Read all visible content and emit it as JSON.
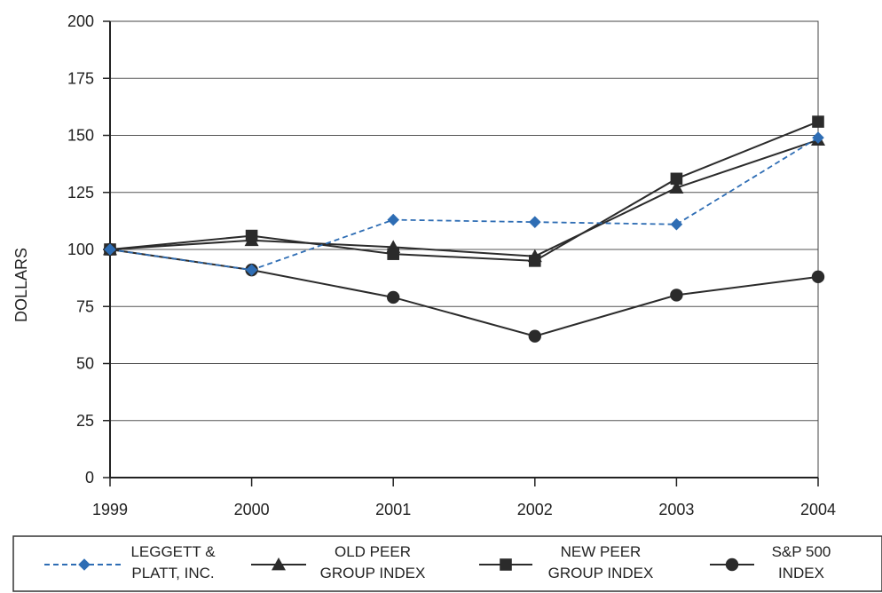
{
  "chart_data": {
    "type": "line",
    "title": "",
    "xlabel": "",
    "ylabel": "DOLLARS",
    "x": [
      "1999",
      "2000",
      "2001",
      "2002",
      "2003",
      "2004"
    ],
    "ylim": [
      0,
      200
    ],
    "yticks": [
      0,
      25,
      50,
      75,
      100,
      125,
      150,
      175,
      200
    ],
    "grid": true,
    "legend_position": "bottom",
    "series": [
      {
        "name": "LEGGETT & PLATT, INC.",
        "legend_lines": [
          "LEGGETT &",
          "PLATT, INC."
        ],
        "values": [
          100,
          91,
          113,
          112,
          111,
          149
        ],
        "marker": "diamond",
        "line_style": "dashed",
        "color": "#2e6db4"
      },
      {
        "name": "OLD PEER GROUP INDEX",
        "legend_lines": [
          "OLD PEER",
          "GROUP INDEX"
        ],
        "values": [
          100,
          104,
          101,
          97,
          127,
          148
        ],
        "marker": "triangle",
        "line_style": "solid",
        "color": "#2b2b2b"
      },
      {
        "name": "NEW PEER GROUP INDEX",
        "legend_lines": [
          "NEW PEER",
          "GROUP INDEX"
        ],
        "values": [
          100,
          106,
          98,
          95,
          131,
          156
        ],
        "marker": "square",
        "line_style": "solid",
        "color": "#2b2b2b"
      },
      {
        "name": "S&P 500 INDEX",
        "legend_lines": [
          "S&P 500",
          "INDEX"
        ],
        "values": [
          100,
          91,
          79,
          62,
          80,
          88
        ],
        "marker": "circle",
        "line_style": "solid",
        "color": "#2b2b2b"
      }
    ]
  }
}
